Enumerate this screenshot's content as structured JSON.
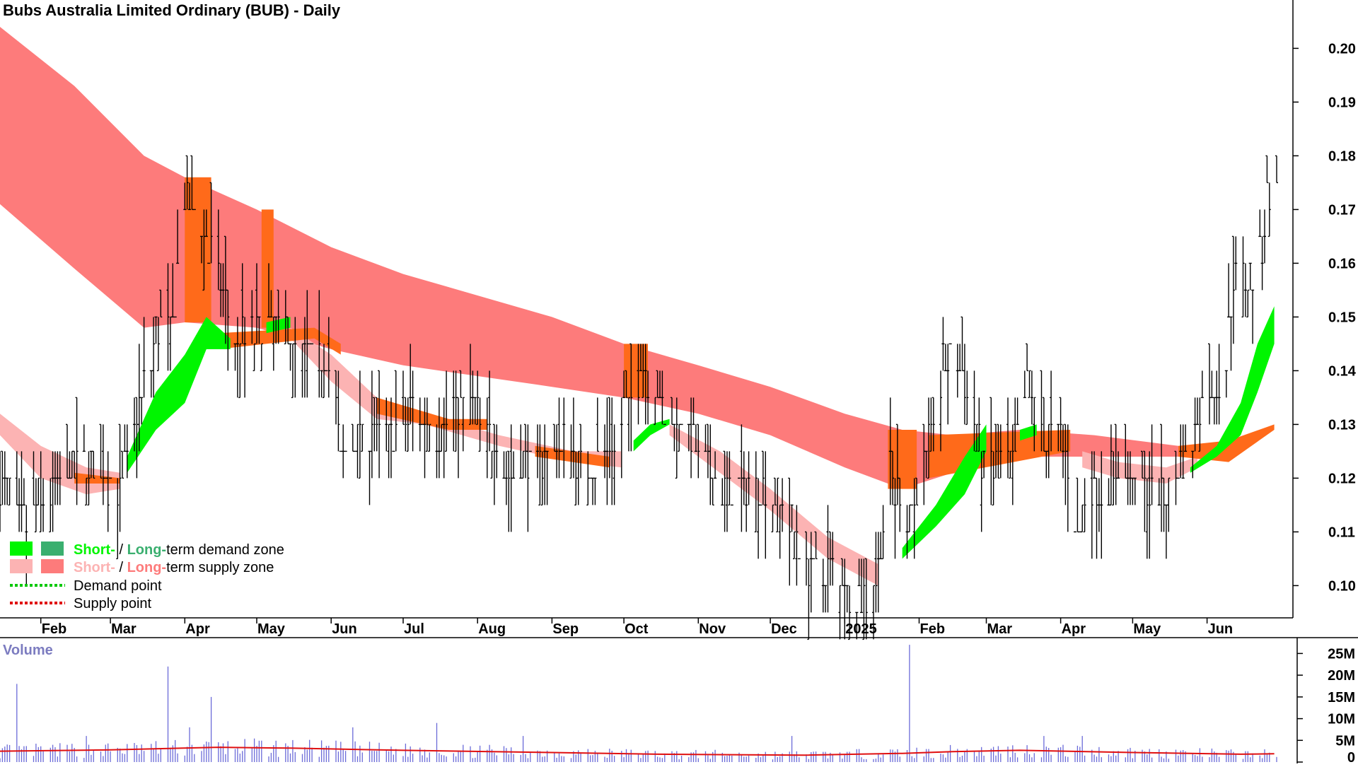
{
  "colors": {
    "long_supply": "#fd7b7b",
    "short_supply": "#fcb3b3",
    "overlap_supply": "#ff6a1a",
    "short_demand": "#00f500",
    "long_demand": "#3aaf6f",
    "volume_bar": "#6b6bd8",
    "volume_ma": "#e01010",
    "volume_title": "#7c7cc0",
    "price_bar": "#000000",
    "demand_point": "#00c800",
    "supply_point": "#e00000"
  },
  "chart_data": {
    "type": "bar",
    "subtype": "ohlc-with-zones",
    "title": "Bubs Australia Limited Ordinary (BUB) - Daily",
    "ylim": [
      0.094,
      0.209
    ],
    "yticks": [
      "0.20",
      "0.19",
      "0.18",
      "0.17",
      "0.16",
      "0.15",
      "0.14",
      "0.13",
      "0.12",
      "0.11",
      "0.10"
    ],
    "xlim": [
      "2024-01-15",
      "2025-06-30"
    ],
    "x_months": [
      {
        "label": "Feb",
        "date": "2024-02-01"
      },
      {
        "label": "Mar",
        "date": "2024-03-01"
      },
      {
        "label": "Apr",
        "date": "2024-04-01"
      },
      {
        "label": "May",
        "date": "2024-05-01"
      },
      {
        "label": "Jun",
        "date": "2024-06-01"
      },
      {
        "label": "Jul",
        "date": "2024-07-01"
      },
      {
        "label": "Aug",
        "date": "2024-08-01"
      },
      {
        "label": "Sep",
        "date": "2024-09-01"
      },
      {
        "label": "Oct",
        "date": "2024-10-01"
      },
      {
        "label": "Nov",
        "date": "2024-11-01"
      },
      {
        "label": "Dec",
        "date": "2024-12-01"
      },
      {
        "label": "2025",
        "date": "2025-01-01"
      },
      {
        "label": "Feb",
        "date": "2025-02-01"
      },
      {
        "label": "Mar",
        "date": "2025-03-01"
      },
      {
        "label": "Apr",
        "date": "2025-04-01"
      },
      {
        "label": "May",
        "date": "2025-05-01"
      },
      {
        "label": "Jun",
        "date": "2025-06-01"
      }
    ],
    "price_path": [
      [
        "2024-01-15",
        0.12
      ],
      [
        "2024-01-25",
        0.112
      ],
      [
        "2024-02-05",
        0.118
      ],
      [
        "2024-02-15",
        0.121
      ],
      [
        "2024-02-25",
        0.121
      ],
      [
        "2024-03-05",
        0.119
      ],
      [
        "2024-03-12",
        0.132
      ],
      [
        "2024-03-20",
        0.146
      ],
      [
        "2024-03-27",
        0.15
      ],
      [
        "2024-04-01",
        0.172
      ],
      [
        "2024-04-07",
        0.168
      ],
      [
        "2024-04-15",
        0.158
      ],
      [
        "2024-04-22",
        0.145
      ],
      [
        "2024-05-01",
        0.148
      ],
      [
        "2024-05-10",
        0.149
      ],
      [
        "2024-05-20",
        0.143
      ],
      [
        "2024-05-31",
        0.141
      ],
      [
        "2024-06-05",
        0.125
      ],
      [
        "2024-06-15",
        0.13
      ],
      [
        "2024-06-25",
        0.127
      ],
      [
        "2024-07-05",
        0.132
      ],
      [
        "2024-07-15",
        0.129
      ],
      [
        "2024-07-25",
        0.134
      ],
      [
        "2024-08-05",
        0.13
      ],
      [
        "2024-08-15",
        0.12
      ],
      [
        "2024-08-25",
        0.124
      ],
      [
        "2024-09-05",
        0.126
      ],
      [
        "2024-09-15",
        0.123
      ],
      [
        "2024-09-25",
        0.124
      ],
      [
        "2024-10-02",
        0.133
      ],
      [
        "2024-10-08",
        0.14
      ],
      [
        "2024-10-15",
        0.134
      ],
      [
        "2024-10-25",
        0.13
      ],
      [
        "2024-11-05",
        0.121
      ],
      [
        "2024-11-15",
        0.118
      ],
      [
        "2024-11-25",
        0.119
      ],
      [
        "2024-12-05",
        0.116
      ],
      [
        "2024-12-15",
        0.105
      ],
      [
        "2024-12-25",
        0.102
      ],
      [
        "2025-01-05",
        0.098
      ],
      [
        "2025-01-12",
        0.097
      ],
      [
        "2025-01-20",
        0.12
      ],
      [
        "2025-01-28",
        0.113
      ],
      [
        "2025-02-05",
        0.126
      ],
      [
        "2025-02-12",
        0.143
      ],
      [
        "2025-02-20",
        0.138
      ],
      [
        "2025-02-27",
        0.124
      ],
      [
        "2025-03-05",
        0.122
      ],
      [
        "2025-03-12",
        0.122
      ],
      [
        "2025-03-18",
        0.14
      ],
      [
        "2025-03-25",
        0.128
      ],
      [
        "2025-04-02",
        0.126
      ],
      [
        "2025-04-08",
        0.111
      ],
      [
        "2025-04-15",
        0.118
      ],
      [
        "2025-04-25",
        0.121
      ],
      [
        "2025-05-05",
        0.119
      ],
      [
        "2025-05-12",
        0.117
      ],
      [
        "2025-05-20",
        0.121
      ],
      [
        "2025-05-27",
        0.129
      ],
      [
        "2025-06-03",
        0.136
      ],
      [
        "2025-06-09",
        0.143
      ],
      [
        "2025-06-13",
        0.16
      ],
      [
        "2025-06-17",
        0.158
      ],
      [
        "2025-06-23",
        0.16
      ],
      [
        "2025-06-27",
        0.175
      ]
    ],
    "long_supply_top": [
      [
        "2024-01-15",
        0.204
      ],
      [
        "2024-02-15",
        0.193
      ],
      [
        "2024-03-15",
        0.18
      ],
      [
        "2024-04-01",
        0.176
      ],
      [
        "2024-05-01",
        0.17
      ],
      [
        "2024-06-01",
        0.163
      ],
      [
        "2024-07-01",
        0.158
      ],
      [
        "2024-08-01",
        0.154
      ],
      [
        "2024-09-01",
        0.15
      ],
      [
        "2024-10-01",
        0.145
      ],
      [
        "2024-11-01",
        0.141
      ],
      [
        "2024-12-01",
        0.137
      ],
      [
        "2025-01-01",
        0.132
      ],
      [
        "2025-01-25",
        0.129
      ],
      [
        "2025-02-15",
        0.128
      ],
      [
        "2025-03-15",
        0.129
      ],
      [
        "2025-04-15",
        0.128
      ],
      [
        "2025-05-20",
        0.126
      ]
    ],
    "long_supply_bottom": [
      [
        "2024-01-15",
        0.171
      ],
      [
        "2024-02-15",
        0.159
      ],
      [
        "2024-03-15",
        0.148
      ],
      [
        "2024-04-01",
        0.149
      ],
      [
        "2024-05-01",
        0.148
      ],
      [
        "2024-06-01",
        0.144
      ],
      [
        "2024-07-01",
        0.141
      ],
      [
        "2024-08-01",
        0.139
      ],
      [
        "2024-09-01",
        0.137
      ],
      [
        "2024-10-01",
        0.135
      ],
      [
        "2024-11-01",
        0.132
      ],
      [
        "2024-12-01",
        0.128
      ],
      [
        "2025-01-01",
        0.122
      ],
      [
        "2025-01-25",
        0.118
      ],
      [
        "2025-02-15",
        0.121
      ],
      [
        "2025-03-15",
        0.124
      ],
      [
        "2025-04-15",
        0.124
      ],
      [
        "2025-05-20",
        0.124
      ]
    ],
    "short_supply_segments": [
      {
        "top": [
          [
            "2024-01-15",
            0.132
          ],
          [
            "2024-02-01",
            0.126
          ],
          [
            "2024-02-20",
            0.122
          ],
          [
            "2024-03-05",
            0.121
          ]
        ],
        "bottom": [
          [
            "2024-01-15",
            0.128
          ],
          [
            "2024-02-01",
            0.12
          ],
          [
            "2024-02-20",
            0.117
          ],
          [
            "2024-03-05",
            0.118
          ]
        ]
      },
      {
        "top": [
          [
            "2024-05-15",
            0.148
          ],
          [
            "2024-06-01",
            0.143
          ],
          [
            "2024-06-20",
            0.135
          ],
          [
            "2024-07-10",
            0.132
          ],
          [
            "2024-08-10",
            0.128
          ],
          [
            "2024-09-10",
            0.125
          ],
          [
            "2024-09-30",
            0.125
          ]
        ],
        "bottom": [
          [
            "2024-05-15",
            0.146
          ],
          [
            "2024-06-01",
            0.138
          ],
          [
            "2024-06-20",
            0.131
          ],
          [
            "2024-07-10",
            0.13
          ],
          [
            "2024-08-10",
            0.126
          ],
          [
            "2024-09-10",
            0.123
          ],
          [
            "2024-09-30",
            0.122
          ]
        ]
      },
      {
        "top": [
          [
            "2024-10-20",
            0.13
          ],
          [
            "2024-11-10",
            0.125
          ],
          [
            "2024-12-01",
            0.118
          ],
          [
            "2024-12-25",
            0.109
          ],
          [
            "2025-01-15",
            0.104
          ]
        ],
        "bottom": [
          [
            "2024-10-20",
            0.128
          ],
          [
            "2024-11-10",
            0.121
          ],
          [
            "2024-12-01",
            0.114
          ],
          [
            "2024-12-25",
            0.105
          ],
          [
            "2025-01-15",
            0.1
          ]
        ]
      },
      {
        "top": [
          [
            "2025-04-10",
            0.125
          ],
          [
            "2025-04-25",
            0.123
          ],
          [
            "2025-05-15",
            0.122
          ],
          [
            "2025-05-28",
            0.124
          ]
        ],
        "bottom": [
          [
            "2025-04-10",
            0.122
          ],
          [
            "2025-04-25",
            0.12
          ],
          [
            "2025-05-15",
            0.119
          ],
          [
            "2025-05-28",
            0.122
          ]
        ]
      }
    ],
    "overlap_supply_segments": [
      {
        "top": [
          [
            "2024-02-15",
            0.121
          ],
          [
            "2024-03-05",
            0.12
          ]
        ],
        "bottom": [
          [
            "2024-02-15",
            0.119
          ],
          [
            "2024-03-05",
            0.119
          ]
        ]
      },
      {
        "top": [
          [
            "2024-04-15",
            0.147
          ],
          [
            "2024-05-25",
            0.148
          ],
          [
            "2024-06-05",
            0.145
          ]
        ],
        "bottom": [
          [
            "2024-04-15",
            0.144
          ],
          [
            "2024-05-25",
            0.146
          ],
          [
            "2024-06-05",
            0.143
          ]
        ]
      },
      {
        "top": [
          [
            "2024-06-20",
            0.135
          ],
          [
            "2024-07-20",
            0.131
          ],
          [
            "2024-08-05",
            0.131
          ]
        ],
        "bottom": [
          [
            "2024-06-20",
            0.132
          ],
          [
            "2024-07-20",
            0.129
          ],
          [
            "2024-08-05",
            0.129
          ]
        ]
      },
      {
        "top": [
          [
            "2024-08-25",
            0.126
          ],
          [
            "2024-09-25",
            0.124
          ]
        ],
        "bottom": [
          [
            "2024-08-25",
            0.124
          ],
          [
            "2024-09-25",
            0.122
          ]
        ]
      },
      {
        "top": [
          [
            "2025-02-05",
            0.128
          ],
          [
            "2025-04-05",
            0.129
          ]
        ],
        "bottom": [
          [
            "2025-02-05",
            0.12
          ],
          [
            "2025-04-05",
            0.125
          ]
        ]
      },
      {
        "top": [
          [
            "2025-05-20",
            0.126
          ],
          [
            "2025-06-10",
            0.127
          ],
          [
            "2025-06-29",
            0.13
          ]
        ],
        "bottom": [
          [
            "2025-05-20",
            0.124
          ],
          [
            "2025-06-10",
            0.123
          ],
          [
            "2025-06-29",
            0.129
          ]
        ]
      }
    ],
    "overlap_supply_columns": [
      {
        "from": "2024-04-01",
        "to": "2024-04-12",
        "top": 0.176,
        "bottom": 0.149
      },
      {
        "from": "2024-05-03",
        "to": "2024-05-08",
        "top": 0.17,
        "bottom": 0.148
      },
      {
        "from": "2024-10-01",
        "to": "2024-10-11",
        "top": 0.145,
        "bottom": 0.135
      },
      {
        "from": "2025-01-19",
        "to": "2025-01-31",
        "top": 0.129,
        "bottom": 0.118
      }
    ],
    "short_demand_segments": [
      {
        "top": [
          [
            "2024-03-08",
            0.124
          ],
          [
            "2024-03-20",
            0.136
          ],
          [
            "2024-04-01",
            0.143
          ],
          [
            "2024-04-10",
            0.15
          ],
          [
            "2024-04-20",
            0.146
          ]
        ],
        "bottom": [
          [
            "2024-03-08",
            0.121
          ],
          [
            "2024-03-20",
            0.129
          ],
          [
            "2024-04-01",
            0.134
          ],
          [
            "2024-04-10",
            0.144
          ],
          [
            "2024-04-20",
            0.144
          ]
        ]
      },
      {
        "top": [
          [
            "2024-05-05",
            0.149
          ],
          [
            "2024-05-15",
            0.15
          ]
        ],
        "bottom": [
          [
            "2024-05-05",
            0.147
          ],
          [
            "2024-05-15",
            0.148
          ]
        ]
      },
      {
        "top": [
          [
            "2024-10-05",
            0.127
          ],
          [
            "2024-10-12",
            0.13
          ],
          [
            "2024-10-20",
            0.131
          ]
        ],
        "bottom": [
          [
            "2024-10-05",
            0.125
          ],
          [
            "2024-10-12",
            0.128
          ],
          [
            "2024-10-20",
            0.13
          ]
        ]
      },
      {
        "top": [
          [
            "2025-01-25",
            0.107
          ],
          [
            "2025-02-08",
            0.115
          ],
          [
            "2025-02-20",
            0.124
          ],
          [
            "2025-03-01",
            0.13
          ]
        ],
        "bottom": [
          [
            "2025-01-25",
            0.105
          ],
          [
            "2025-02-08",
            0.111
          ],
          [
            "2025-02-20",
            0.117
          ],
          [
            "2025-03-01",
            0.125
          ]
        ]
      },
      {
        "top": [
          [
            "2025-03-15",
            0.129
          ],
          [
            "2025-03-22",
            0.13
          ]
        ],
        "bottom": [
          [
            "2025-03-15",
            0.127
          ],
          [
            "2025-03-22",
            0.128
          ]
        ]
      },
      {
        "top": [
          [
            "2025-05-25",
            0.122
          ],
          [
            "2025-06-05",
            0.126
          ],
          [
            "2025-06-15",
            0.134
          ],
          [
            "2025-06-22",
            0.145
          ],
          [
            "2025-06-29",
            0.152
          ]
        ],
        "bottom": [
          [
            "2025-05-25",
            0.121
          ],
          [
            "2025-06-05",
            0.124
          ],
          [
            "2025-06-15",
            0.128
          ],
          [
            "2025-06-22",
            0.136
          ],
          [
            "2025-06-29",
            0.145
          ]
        ]
      }
    ],
    "volume": {
      "title": "Volume",
      "yticks": [
        "25M",
        "20M",
        "15M",
        "10M",
        "5M",
        "0"
      ],
      "ylim": [
        0,
        28
      ],
      "unit": "M",
      "spikes": [
        [
          "2024-01-22",
          18
        ],
        [
          "2024-02-20",
          6
        ],
        [
          "2024-03-25",
          22
        ],
        [
          "2024-03-30",
          13
        ],
        [
          "2024-04-12",
          15
        ],
        [
          "2024-04-03",
          8
        ],
        [
          "2024-06-01",
          12
        ],
        [
          "2024-06-10",
          8
        ],
        [
          "2024-07-15",
          9
        ],
        [
          "2024-08-20",
          6
        ],
        [
          "2024-10-05",
          6
        ],
        [
          "2024-11-10",
          5
        ],
        [
          "2024-12-10",
          6
        ],
        [
          "2025-01-28",
          27
        ],
        [
          "2025-02-15",
          6
        ],
        [
          "2025-03-25",
          6
        ],
        [
          "2025-04-10",
          6
        ],
        [
          "2025-06-15",
          8
        ],
        [
          "2025-06-28",
          7
        ]
      ],
      "ma": [
        [
          "2024-01-15",
          2.5
        ],
        [
          "2024-03-01",
          2.8
        ],
        [
          "2024-04-15",
          3.4
        ],
        [
          "2024-05-15",
          3.2
        ],
        [
          "2024-07-01",
          2.7
        ],
        [
          "2024-09-01",
          2.2
        ],
        [
          "2024-10-15",
          1.8
        ],
        [
          "2024-12-15",
          1.6
        ],
        [
          "2025-01-25",
          2.0
        ],
        [
          "2025-02-15",
          2.4
        ],
        [
          "2025-03-15",
          2.7
        ],
        [
          "2025-05-01",
          2.2
        ],
        [
          "2025-06-15",
          1.8
        ],
        [
          "2025-06-29",
          1.9
        ]
      ]
    }
  },
  "legend": {
    "items": [
      {
        "prefix": "Short-",
        "sep": " / ",
        "mid": "Long-",
        "suffix": "term demand zone"
      },
      {
        "prefix": "Short-",
        "sep": " / ",
        "mid": "Long-",
        "suffix": "term supply zone"
      },
      {
        "label": "Demand point"
      },
      {
        "label": "Supply point"
      }
    ]
  }
}
